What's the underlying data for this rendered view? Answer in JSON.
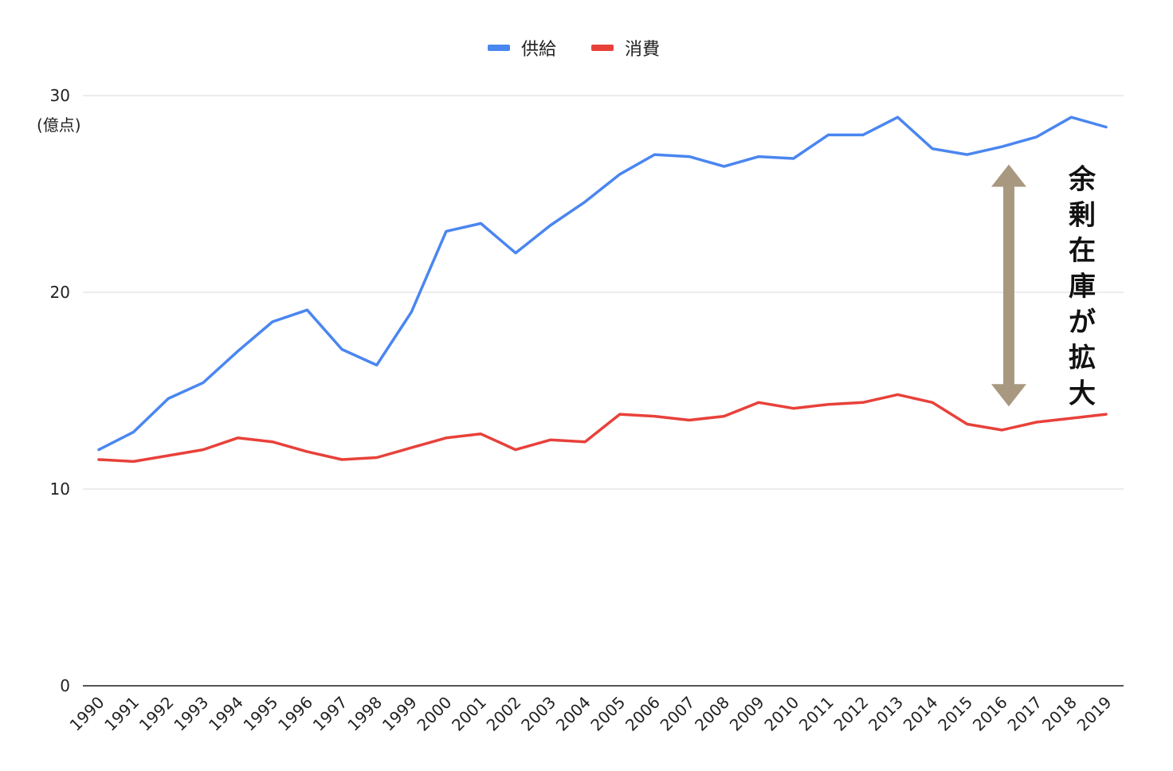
{
  "chart_data": {
    "type": "line",
    "title": "",
    "xlabel": "",
    "ylabel": "(億点)",
    "ylim": [
      0,
      30
    ],
    "yticks": [
      "0",
      "10",
      "20",
      "30"
    ],
    "grid": true,
    "legend_position": "top-center",
    "x": [
      "1990",
      "1991",
      "1992",
      "1993",
      "1994",
      "1995",
      "1996",
      "1997",
      "1998",
      "1999",
      "2000",
      "2001",
      "2002",
      "2003",
      "2004",
      "2005",
      "2006",
      "2007",
      "2008",
      "2009",
      "2010",
      "2011",
      "2012",
      "2013",
      "2014",
      "2015",
      "2016",
      "2017",
      "2018",
      "2019"
    ],
    "series": [
      {
        "name": "供給",
        "color": "#4a86f0",
        "values": [
          12.0,
          12.9,
          14.6,
          15.4,
          17.0,
          18.5,
          19.1,
          17.1,
          16.3,
          19.0,
          23.1,
          23.5,
          22.0,
          23.4,
          24.6,
          26.0,
          27.0,
          26.9,
          26.4,
          26.9,
          26.8,
          28.0,
          28.0,
          28.9,
          27.3,
          27.0,
          27.4,
          27.9,
          28.9,
          28.4
        ]
      },
      {
        "name": "消費",
        "color": "#e8413a",
        "values": [
          11.5,
          11.4,
          11.7,
          12.0,
          12.6,
          12.4,
          11.9,
          11.5,
          11.6,
          12.1,
          12.6,
          12.8,
          12.0,
          12.5,
          12.4,
          13.8,
          13.7,
          13.5,
          13.7,
          14.4,
          14.1,
          14.3,
          14.4,
          14.8,
          14.4,
          13.3,
          13.0,
          13.4,
          13.6,
          13.8
        ]
      }
    ],
    "annotation": {
      "text": "余剰在庫が拡大",
      "arrow_color": "#a89880",
      "arrow_from": 26.5,
      "arrow_to": 14.2,
      "arrow_x_index": 26.2
    }
  }
}
